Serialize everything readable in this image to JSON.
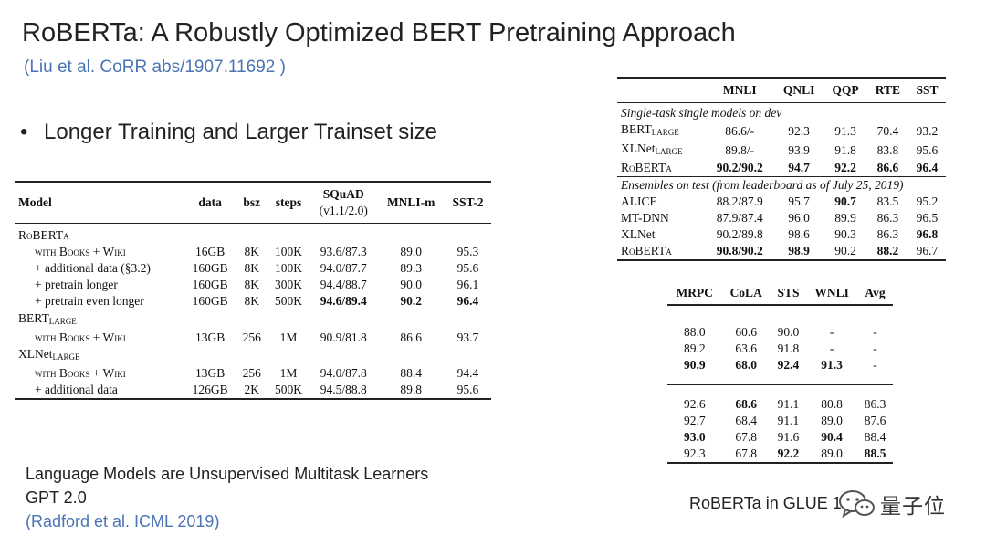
{
  "slide": {
    "title": "RoBERTa: A Robustly Optimized BERT Pretraining Approach",
    "citation": "(Liu et al. CoRR abs/1907.11692 )",
    "bullet": "Longer Training and Larger Trainset size",
    "bottom_line1": "Language Models are Unsupervised Multitask Learners",
    "bottom_line2": "GPT 2.0",
    "bottom_citation": "(Radford et al. ICML 2019)",
    "glue_caption": "RoBERTa in GLUE 1",
    "watermark_text": "量子位",
    "watermark_icon": "wechat-icon"
  },
  "left_table": {
    "headers": [
      "Model",
      "data",
      "bsz",
      "steps",
      "SQuAD",
      "(v1.1/2.0)",
      "MNLI-m",
      "SST-2"
    ],
    "rows": [
      {
        "model": "RoBERTa",
        "data": "",
        "bsz": "",
        "steps": "",
        "squad": "",
        "mnli": "",
        "sst": ""
      },
      {
        "model": "with Books + Wiki",
        "data": "16GB",
        "bsz": "8K",
        "steps": "100K",
        "squad": "93.6/87.3",
        "mnli": "89.0",
        "sst": "95.3"
      },
      {
        "model": "+ additional data (§3.2)",
        "data": "160GB",
        "bsz": "8K",
        "steps": "100K",
        "squad": "94.0/87.7",
        "mnli": "89.3",
        "sst": "95.6"
      },
      {
        "model": "+ pretrain longer",
        "data": "160GB",
        "bsz": "8K",
        "steps": "300K",
        "squad": "94.4/88.7",
        "mnli": "90.0",
        "sst": "96.1"
      },
      {
        "model": "+ pretrain even longer",
        "data": "160GB",
        "bsz": "8K",
        "steps": "500K",
        "squad": "94.6/89.4",
        "mnli": "90.2",
        "sst": "96.4"
      },
      {
        "model": "BERT",
        "model_sub": "LARGE",
        "data": "",
        "bsz": "",
        "steps": "",
        "squad": "",
        "mnli": "",
        "sst": ""
      },
      {
        "model": "with Books + Wiki",
        "data": "13GB",
        "bsz": "256",
        "steps": "1M",
        "squad": "90.9/81.8",
        "mnli": "86.6",
        "sst": "93.7"
      },
      {
        "model": "XLNet",
        "model_sub": "LARGE",
        "data": "",
        "bsz": "",
        "steps": "",
        "squad": "",
        "mnli": "",
        "sst": ""
      },
      {
        "model": "with Books + Wiki",
        "data": "13GB",
        "bsz": "256",
        "steps": "1M",
        "squad": "94.0/87.8",
        "mnli": "88.4",
        "sst": "94.4"
      },
      {
        "model": "+ additional data",
        "data": "126GB",
        "bsz": "2K",
        "steps": "500K",
        "squad": "94.5/88.8",
        "mnli": "89.8",
        "sst": "95.6"
      }
    ]
  },
  "glue_top": {
    "headers": [
      "",
      "MNLI",
      "QNLI",
      "QQP",
      "RTE",
      "SST"
    ],
    "section1": "Single-task single models on dev",
    "rows1": [
      {
        "model": "BERT",
        "sub": "LARGE",
        "v": [
          "86.6/-",
          "92.3",
          "91.3",
          "70.4",
          "93.2"
        ]
      },
      {
        "model": "XLNet",
        "sub": "LARGE",
        "v": [
          "89.8/-",
          "93.9",
          "91.8",
          "83.8",
          "95.6"
        ]
      },
      {
        "model": "RoBERTa",
        "sub": "",
        "v": [
          "90.2/90.2",
          "94.7",
          "92.2",
          "86.6",
          "96.4"
        ]
      }
    ],
    "section2": "Ensembles on test (from leaderboard as of July 25, 2019)",
    "rows2": [
      {
        "model": "ALICE",
        "v": [
          "88.2/87.9",
          "95.7",
          "90.7",
          "83.5",
          "95.2"
        ]
      },
      {
        "model": "MT-DNN",
        "v": [
          "87.9/87.4",
          "96.0",
          "89.9",
          "86.3",
          "96.5"
        ]
      },
      {
        "model": "XLNet",
        "v": [
          "90.2/89.8",
          "98.6",
          "90.3",
          "86.3",
          "96.8"
        ]
      },
      {
        "model": "RoBERTa",
        "v": [
          "90.8/90.2",
          "98.9",
          "90.2",
          "88.2",
          "96.7"
        ]
      }
    ]
  },
  "glue_bottom": {
    "headers": [
      "MRPC",
      "CoLA",
      "STS",
      "WNLI",
      "Avg"
    ],
    "rows1": [
      [
        "88.0",
        "60.6",
        "90.0",
        "-",
        "-"
      ],
      [
        "89.2",
        "63.6",
        "91.8",
        "-",
        "-"
      ],
      [
        "90.9",
        "68.0",
        "92.4",
        "91.3",
        "-"
      ]
    ],
    "rows2": [
      [
        "92.6",
        "68.6",
        "91.1",
        "80.8",
        "86.3"
      ],
      [
        "92.7",
        "68.4",
        "91.1",
        "89.0",
        "87.6"
      ],
      [
        "93.0",
        "67.8",
        "91.6",
        "90.4",
        "88.4"
      ],
      [
        "92.3",
        "67.8",
        "92.2",
        "89.0",
        "88.5"
      ]
    ]
  }
}
